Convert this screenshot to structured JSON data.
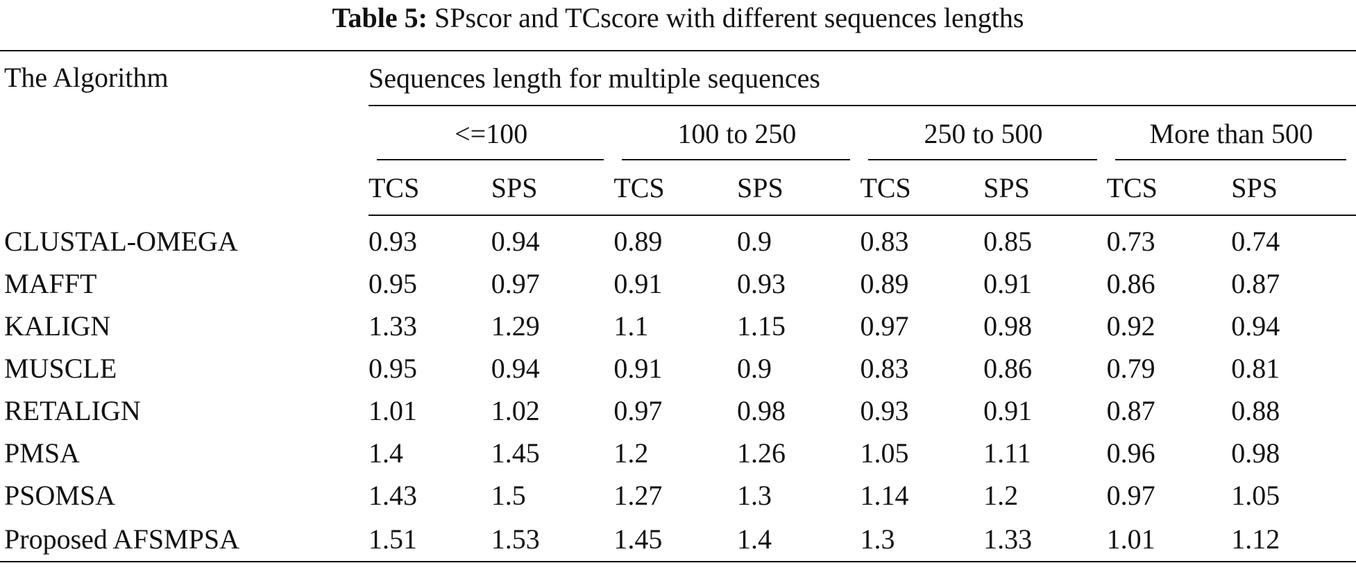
{
  "caption": {
    "label": "Table 5:",
    "text": "SPscor and TCscore with different sequences lengths"
  },
  "table": {
    "algorithm_header": "The Algorithm",
    "group_header": "Sequences length for multiple sequences",
    "length_groups": [
      "<=100",
      "100 to 250",
      "250 to 500",
      "More than 500"
    ],
    "metrics": [
      "TCS",
      "SPS",
      "TCS",
      "SPS",
      "TCS",
      "SPS",
      "TCS",
      "SPS"
    ],
    "rows": [
      {
        "name": "CLUSTAL-OMEGA",
        "values": [
          "0.93",
          "0.94",
          "0.89",
          "0.9",
          "0.83",
          "0.85",
          "0.73",
          "0.74"
        ]
      },
      {
        "name": "MAFFT",
        "values": [
          "0.95",
          "0.97",
          "0.91",
          "0.93",
          "0.89",
          "0.91",
          "0.86",
          "0.87"
        ]
      },
      {
        "name": "KALIGN",
        "values": [
          "1.33",
          "1.29",
          "1.1",
          "1.15",
          "0.97",
          "0.98",
          "0.92",
          "0.94"
        ]
      },
      {
        "name": "MUSCLE",
        "values": [
          "0.95",
          "0.94",
          "0.91",
          "0.9",
          "0.83",
          "0.86",
          "0.79",
          "0.81"
        ]
      },
      {
        "name": "RETALIGN",
        "values": [
          "1.01",
          "1.02",
          "0.97",
          "0.98",
          "0.93",
          "0.91",
          "0.87",
          "0.88"
        ]
      },
      {
        "name": "PMSA",
        "values": [
          "1.4",
          "1.45",
          "1.2",
          "1.26",
          "1.05",
          "1.11",
          "0.96",
          "0.98"
        ]
      },
      {
        "name": "PSOMSA",
        "values": [
          "1.43",
          "1.5",
          "1.27",
          "1.3",
          "1.14",
          "1.2",
          "0.97",
          "1.05"
        ]
      },
      {
        "name": "Proposed AFSMPSA",
        "values": [
          "1.51",
          "1.53",
          "1.45",
          "1.4",
          "1.3",
          "1.33",
          "1.01",
          "1.12"
        ]
      }
    ]
  }
}
